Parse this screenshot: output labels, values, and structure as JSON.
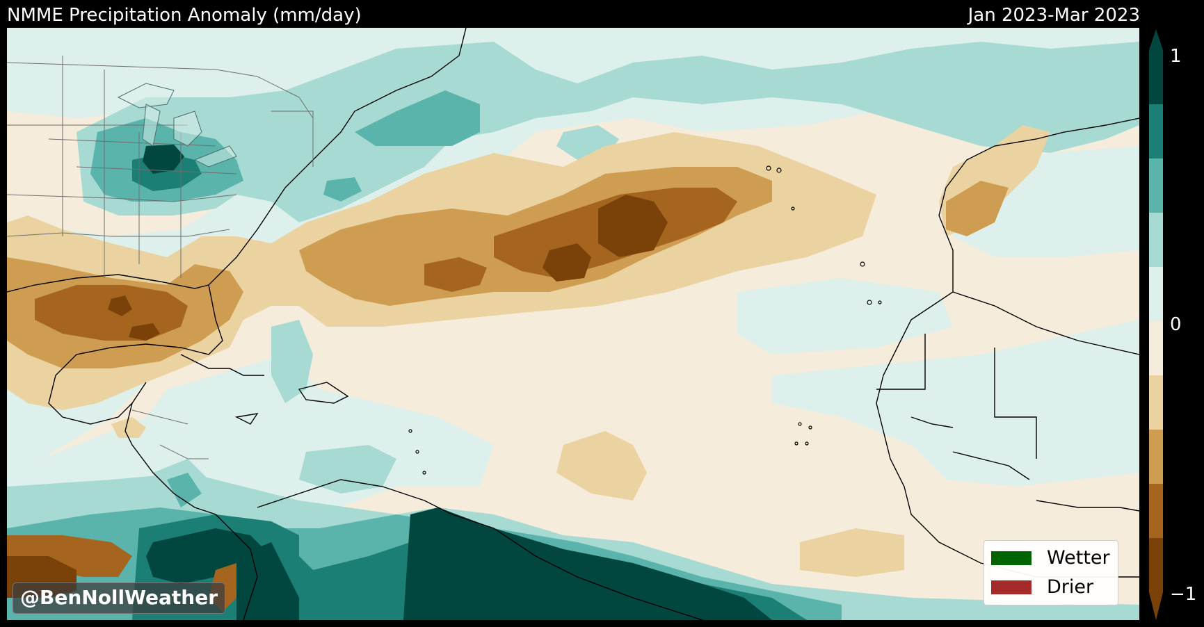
{
  "header": {
    "title": "NMME Precipitation Anomaly (mm/day)",
    "period": "Jan 2023-Mar 2023"
  },
  "colorbar": {
    "tick_top": "1",
    "tick_mid": "0",
    "tick_bottom": "−1",
    "colors": [
      "#01665e",
      "#1b7f76",
      "#5ab4ac",
      "#a6dad3",
      "#ddf0ec",
      "#f6ecdb",
      "#ead3a0",
      "#cf9d52",
      "#a5651f",
      "#7a4209"
    ]
  },
  "legend": {
    "wetter_label": "Wetter",
    "wetter_color": "#006400",
    "drier_label": "Drier",
    "drier_color": "#a52a2a"
  },
  "watermark": "@BenNollWeather",
  "palette": {
    "strong_wet": "#01463f",
    "wet_3": "#1b7f76",
    "wet_2": "#5ab4ac",
    "wet_1": "#a6dad3",
    "near_zero_wet": "#ddf0ec",
    "near_zero_dry": "#f6ecdb",
    "dry_1": "#ead3a0",
    "dry_2": "#cf9d52",
    "dry_3": "#a5651f",
    "strong_dry": "#7a4209"
  }
}
